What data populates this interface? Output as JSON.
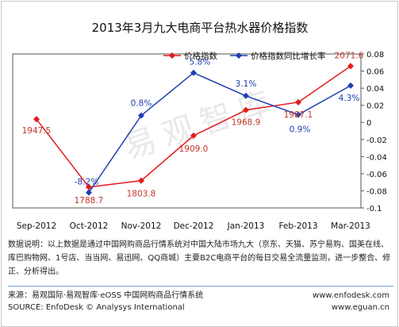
{
  "chart_data": {
    "type": "line",
    "title": "2013年3月九大电商平台热水器价格指数",
    "categories": [
      "Sep-2012",
      "Oct-2012",
      "Nov-2012",
      "Dec-2012",
      "Jan-2013",
      "Feb-2013",
      "Mar-2013"
    ],
    "series": [
      {
        "name": "价格指数",
        "axis": "left",
        "color": "#e41a1c",
        "values": [
          1947.5,
          1788.7,
          1803.8,
          1909.0,
          1968.9,
          1987.1,
          2071.6
        ],
        "labels": [
          "1947.5",
          "1788.7",
          "1803.8",
          "1909.0",
          "1968.9",
          "1987.1",
          "2071.6"
        ]
      },
      {
        "name": "价格指数同比增长率",
        "axis": "right",
        "color": "#1f3fb0",
        "values": [
          null,
          -0.082,
          0.008,
          0.058,
          0.031,
          0.009,
          0.043
        ],
        "labels": [
          "",
          "-8.2%",
          "0.8%",
          "5.8%",
          "3.1%",
          "0.9%",
          "4.3%"
        ]
      }
    ],
    "y2lim": [
      -0.1,
      0.08
    ],
    "y2ticks": [
      "0.08",
      "0.06",
      "0.04",
      "0.02",
      "0",
      "-0.02",
      "-0.04",
      "-0.06",
      "-0.08",
      "-0.1"
    ],
    "ylim": [
      1740,
      2100
    ],
    "legend": "top",
    "grid": false
  },
  "note": "数据说明：以上数据是通过中国网购商品行情系统对中国大陆市场九大（京东、天猫、苏宁易购、国美在线、库巴购物网、1号店、当当网、易迅网、QQ商城）主要B2C电商平台的每日交易全流量监测，进一步整合、修正、分析得出。",
  "source_cn": "来源：易观国际·易观智库·eOSS 中国网购商品行情系统",
  "source_en": "SOURCE: EnfoDesk © Analysys International",
  "url1": "www.enfodesk.com",
  "url2": "www.eguan.cn",
  "watermark": "易观智库"
}
